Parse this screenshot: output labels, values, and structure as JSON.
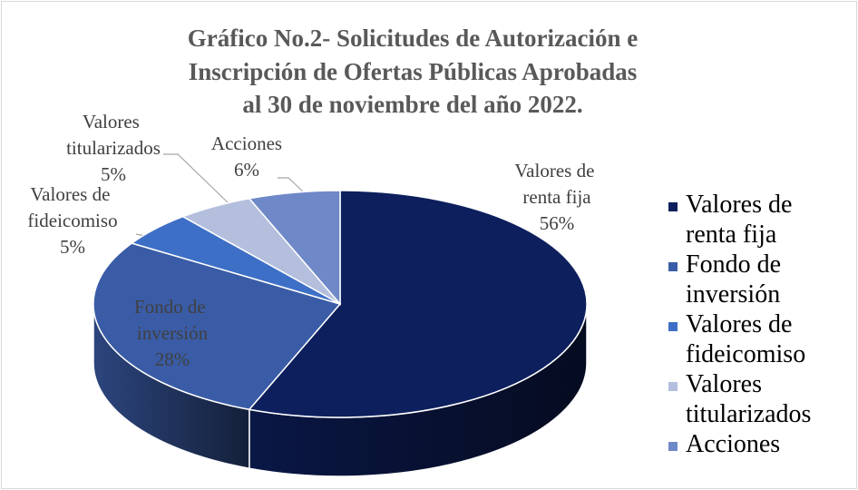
{
  "chart_data": {
    "type": "pie3d",
    "title": [
      "Gráfico No.2- Solicitudes de Autorización e",
      "Inscripción de Ofertas Públicas Aprobadas",
      "al 30 de noviembre del año 2022."
    ],
    "categories": [
      "Valores de renta fija",
      "Fondo de inversión",
      "Valores de fideicomiso",
      "Valores titularizados",
      "Acciones"
    ],
    "values": [
      56,
      28,
      5,
      5,
      6
    ],
    "value_labels": [
      "56%",
      "28%",
      "5%",
      "5%",
      "6%"
    ],
    "colors": [
      "#0d1f5c",
      "#3a5ca6",
      "#3e6fc6",
      "#b4bfde",
      "#6f88c8"
    ],
    "legend": "right"
  }
}
